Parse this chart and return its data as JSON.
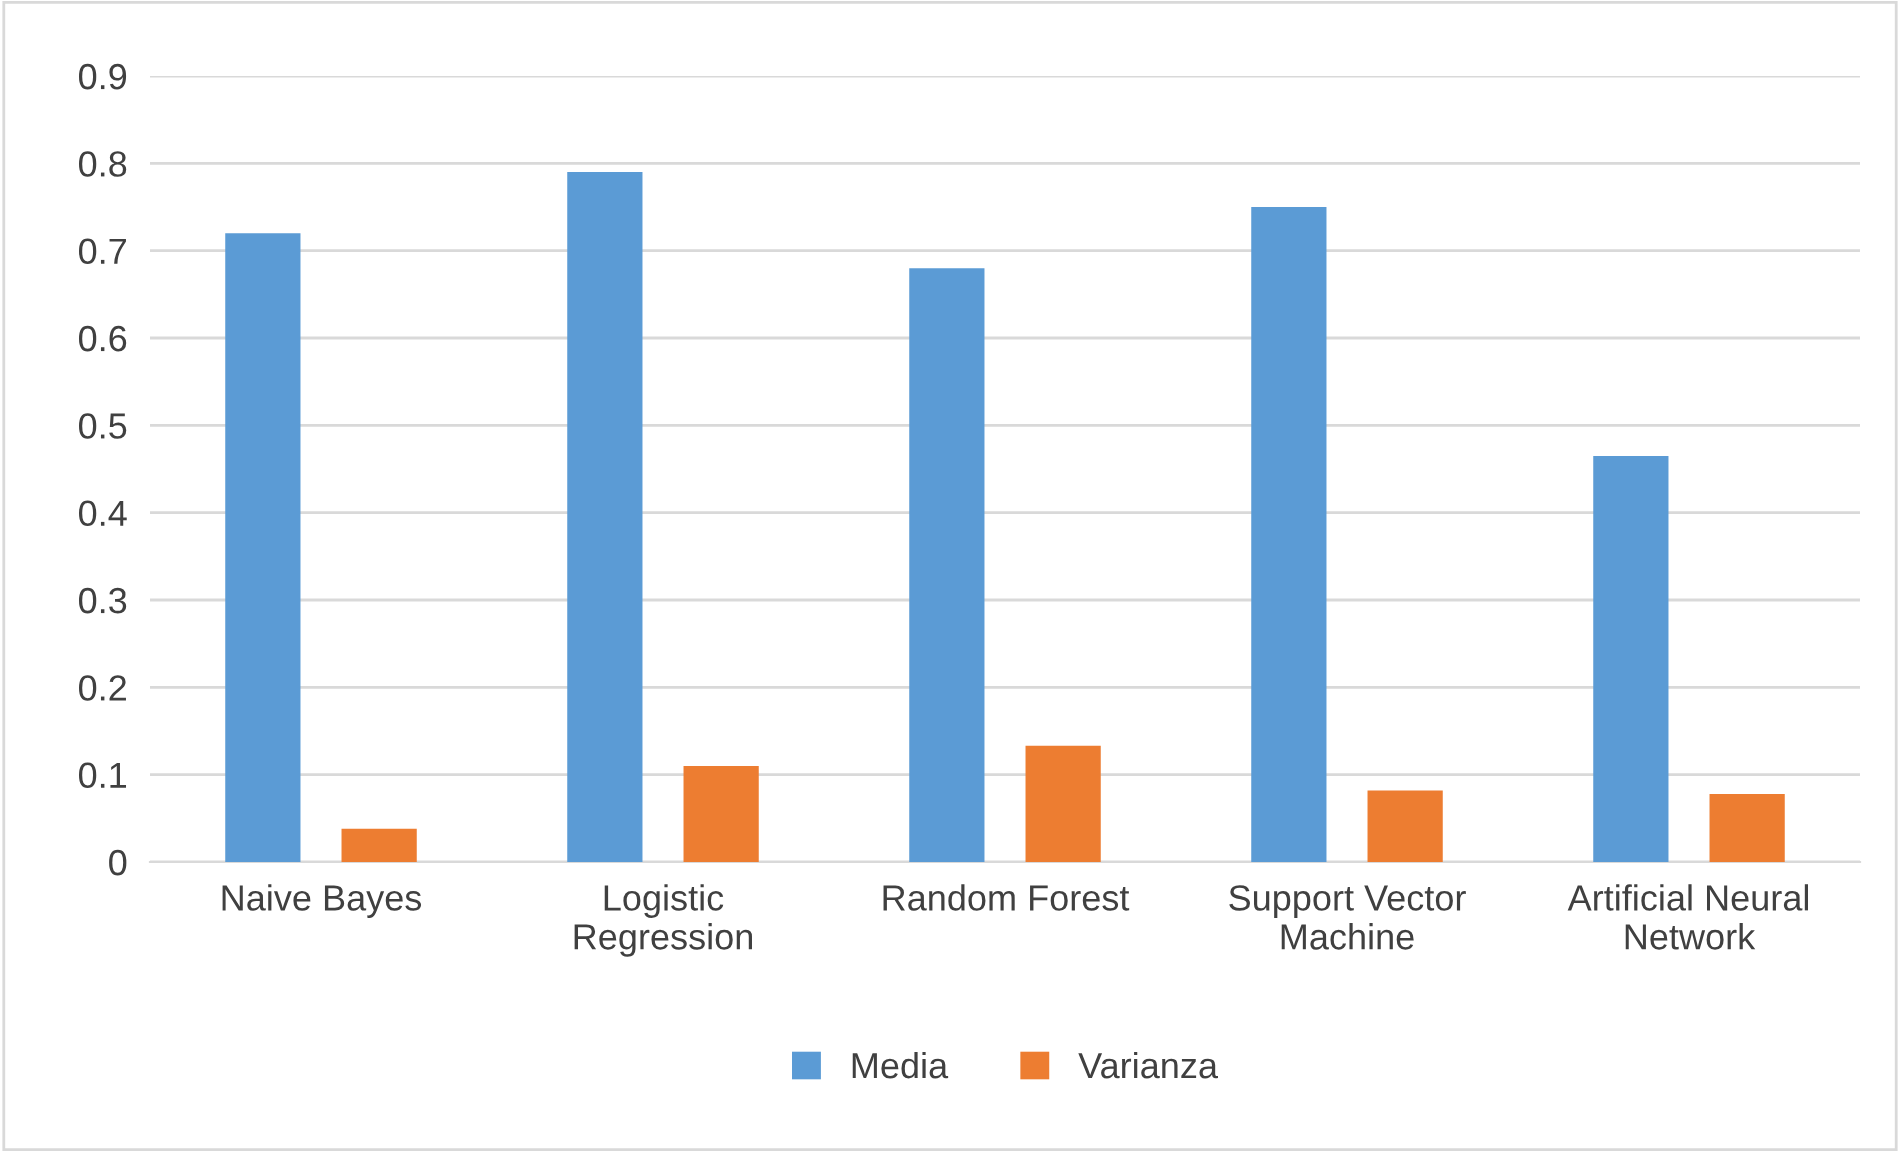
{
  "chart_data": {
    "type": "bar",
    "categories": [
      "Naive Bayes",
      "Logistic\nRegression",
      "Random Forest",
      "Support Vector\nMachine",
      "Artificial Neural\nNetwork"
    ],
    "series": [
      {
        "name": "Media",
        "color": "#5b9bd5",
        "values": [
          0.72,
          0.79,
          0.68,
          0.75,
          0.465
        ]
      },
      {
        "name": "Varianza",
        "color": "#ed7d31",
        "values": [
          0.038,
          0.11,
          0.133,
          0.082,
          0.078
        ]
      }
    ],
    "ylim": [
      0,
      0.9
    ],
    "yticks": [
      {
        "value": 0,
        "label": "0"
      },
      0.1,
      0.2,
      0.3,
      0.4,
      0.5,
      0.6,
      0.7,
      0.8,
      0.9
    ],
    "grid": "y",
    "legend": "bottom"
  }
}
